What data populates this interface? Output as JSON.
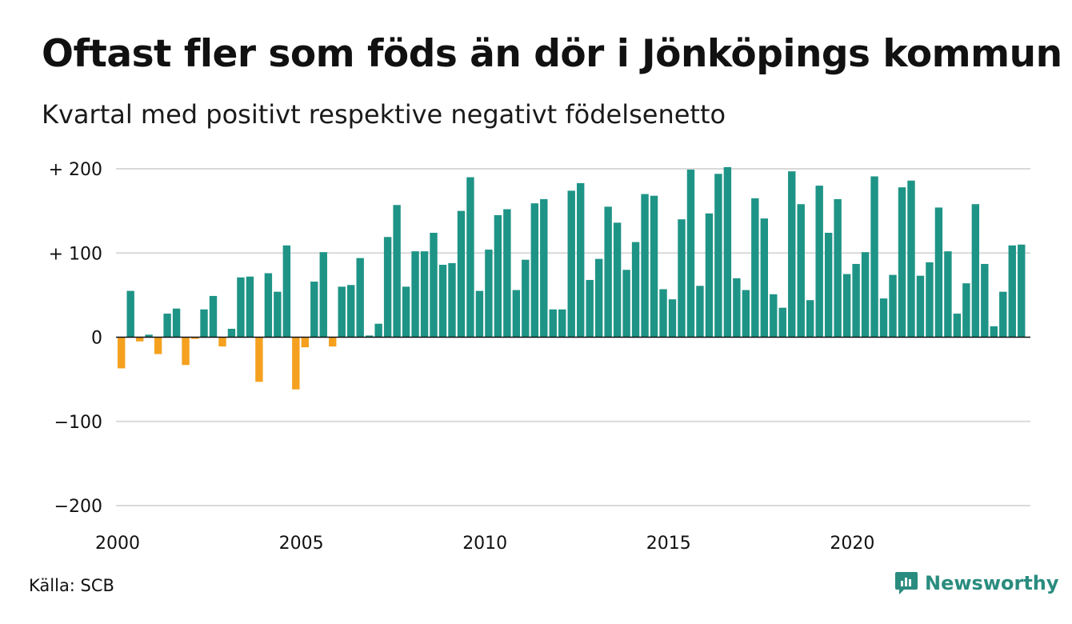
{
  "header": {
    "title": "Oftast fler som föds än dör i Jönköpings kommun",
    "subtitle": "Kvartal med positivt respektive negativt födelsenetto"
  },
  "footer": {
    "source": "Källa: SCB",
    "brand": "Newsworthy"
  },
  "colors": {
    "positive": "#1e9486",
    "negative": "#f5a11f",
    "grid": "#d9d9d9",
    "brand": "#2a8c7e"
  },
  "chart_data": {
    "type": "bar",
    "title": "Oftast fler som föds än dör i Jönköpings kommun",
    "subtitle": "Kvartal med positivt respektive negativt födelsenetto",
    "x_start": "2000 Q1",
    "ylim": [
      -200,
      200
    ],
    "y_ticks": [
      200,
      100,
      0,
      -100,
      -200
    ],
    "y_tick_labels": [
      "+ 200",
      "+ 100",
      "0",
      "−100",
      "−200"
    ],
    "x_tick_labels": [
      "2000",
      "2005",
      "2010",
      "2015",
      "2020"
    ],
    "x_tick_quarter_index": [
      0,
      20,
      40,
      60,
      80
    ],
    "grid": true,
    "legend": "none",
    "values": [
      -37,
      55,
      -5,
      3,
      -20,
      28,
      34,
      -33,
      -2,
      33,
      49,
      -11,
      10,
      71,
      72,
      -53,
      76,
      54,
      109,
      -62,
      -12,
      66,
      101,
      -11,
      60,
      62,
      94,
      2,
      16,
      119,
      157,
      60,
      102,
      102,
      124,
      86,
      88,
      150,
      190,
      55,
      104,
      145,
      152,
      56,
      92,
      159,
      164,
      33,
      33,
      174,
      183,
      68,
      93,
      155,
      136,
      80,
      113,
      170,
      168,
      57,
      45,
      140,
      199,
      61,
      147,
      194,
      202,
      70,
      56,
      165,
      141,
      51,
      35,
      197,
      158,
      44,
      180,
      124,
      164,
      75,
      87,
      101,
      191,
      46,
      74,
      178,
      186,
      73,
      89,
      154,
      102,
      28,
      64,
      158,
      87,
      13,
      54,
      109,
      110
    ]
  }
}
